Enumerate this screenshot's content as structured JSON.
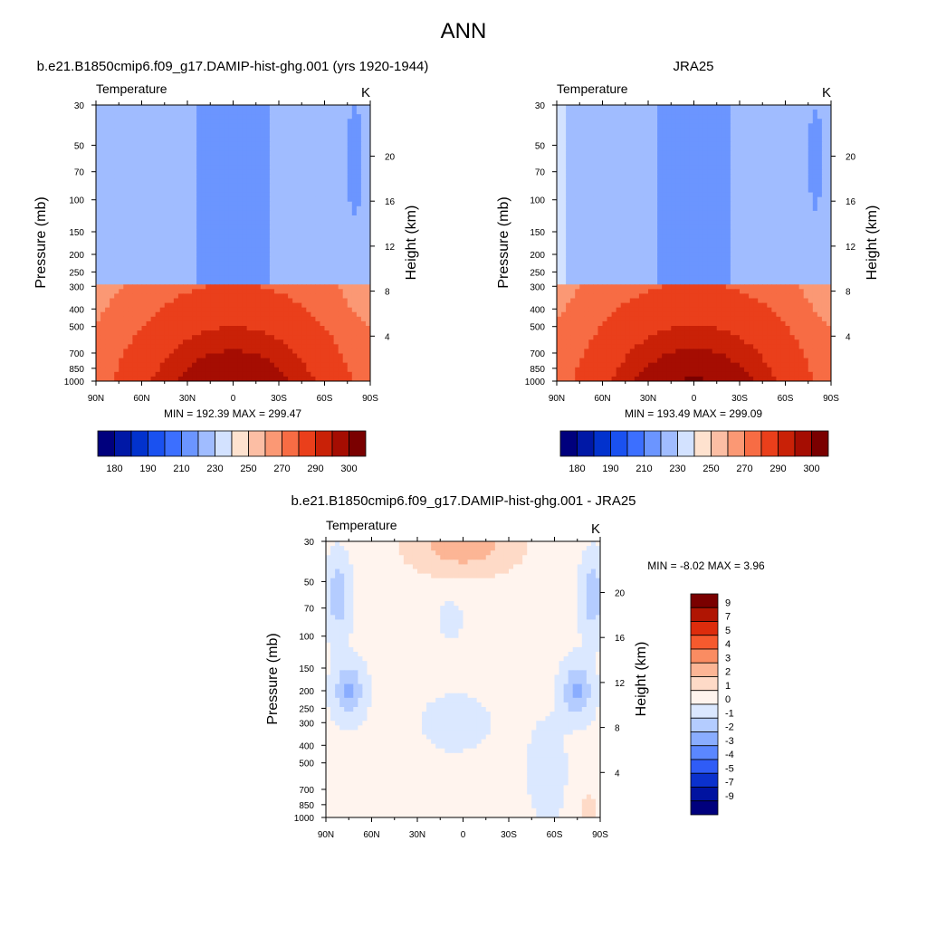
{
  "figure": {
    "title": "ANN"
  },
  "panels": [
    {
      "title": "b.e21.B1850cmip6.f09_g17.DAMIP-hist-ghg.001 (yrs 1920-1944)",
      "left_label": "Temperature",
      "right_label": "K",
      "ylabel": "Pressure (mb)",
      "y2label": "Height (km)",
      "stats": "MIN = 192.39  MAX = 299.47"
    },
    {
      "title": "JRA25",
      "left_label": "Temperature",
      "right_label": "K",
      "ylabel": "Pressure (mb)",
      "y2label": "Height (km)",
      "stats": "MIN = 193.49  MAX = 299.09"
    },
    {
      "title": "b.e21.B1850cmip6.f09_g17.DAMIP-hist-ghg.001 - JRA25",
      "left_label": "Temperature",
      "right_label": "K",
      "ylabel": "Pressure (mb)",
      "y2label": "Height (km)",
      "stats": "MIN =  -8.02  MAX =   3.96"
    }
  ],
  "chart_data": [
    {
      "type": "heatmap",
      "title": "b.e21.B1850cmip6.f09_g17.DAMIP-hist-ghg.001 (yrs 1920-1944)",
      "variable": "Temperature",
      "units": "K",
      "xlabel": "",
      "ylabel": "Pressure (mb)",
      "y2label": "Height (km)",
      "x_ticks": [
        "90N",
        "60N",
        "30N",
        "0",
        "30S",
        "60S",
        "90S"
      ],
      "y_ticks": [
        30,
        50,
        70,
        100,
        150,
        200,
        250,
        300,
        400,
        500,
        700,
        850,
        1000
      ],
      "y2_ticks": [
        4,
        8,
        12,
        16,
        20
      ],
      "ylim": [
        1000,
        30
      ],
      "y_scale": "log",
      "min": 192.39,
      "max": 299.47,
      "colorbar": {
        "orientation": "horizontal",
        "labels": [
          "180",
          "190",
          "210",
          "230",
          "250",
          "270",
          "290",
          "300"
        ],
        "colors": [
          "#00007d",
          "#0018a6",
          "#0232cd",
          "#1a51f0",
          "#3c6fff",
          "#6b95ff",
          "#a0bcff",
          "#d3e2ff",
          "#fee2cf",
          "#fcbea4",
          "#fb9874",
          "#f76c44",
          "#ea3f1b",
          "#c92107",
          "#a50d02",
          "#7a0000"
        ]
      },
      "field": "temperature"
    },
    {
      "type": "heatmap",
      "title": "JRA25",
      "variable": "Temperature",
      "units": "K",
      "xlabel": "",
      "ylabel": "Pressure (mb)",
      "y2label": "Height (km)",
      "x_ticks": [
        "90N",
        "60N",
        "30N",
        "0",
        "30S",
        "60S",
        "90S"
      ],
      "y_ticks": [
        30,
        50,
        70,
        100,
        150,
        200,
        250,
        300,
        400,
        500,
        700,
        850,
        1000
      ],
      "y2_ticks": [
        4,
        8,
        12,
        16,
        20
      ],
      "ylim": [
        1000,
        30
      ],
      "y_scale": "log",
      "min": 193.49,
      "max": 299.09,
      "colorbar": {
        "orientation": "horizontal",
        "labels": [
          "180",
          "190",
          "210",
          "230",
          "250",
          "270",
          "290",
          "300"
        ],
        "colors": [
          "#00007d",
          "#0018a6",
          "#0232cd",
          "#1a51f0",
          "#3c6fff",
          "#6b95ff",
          "#a0bcff",
          "#d3e2ff",
          "#fee2cf",
          "#fcbea4",
          "#fb9874",
          "#f76c44",
          "#ea3f1b",
          "#c92107",
          "#a50d02",
          "#7a0000"
        ]
      },
      "field": "temperature"
    },
    {
      "type": "heatmap",
      "title": "b.e21.B1850cmip6.f09_g17.DAMIP-hist-ghg.001 - JRA25",
      "variable": "Temperature",
      "units": "K",
      "xlabel": "",
      "ylabel": "Pressure (mb)",
      "y2label": "Height (km)",
      "x_ticks": [
        "90N",
        "60N",
        "30N",
        "0",
        "30S",
        "60S",
        "90S"
      ],
      "y_ticks": [
        30,
        50,
        70,
        100,
        150,
        200,
        250,
        300,
        400,
        500,
        700,
        850,
        1000
      ],
      "y2_ticks": [
        4,
        8,
        12,
        16,
        20
      ],
      "ylim": [
        1000,
        30
      ],
      "y_scale": "log",
      "min": -8.02,
      "max": 3.96,
      "colorbar": {
        "orientation": "vertical",
        "labels": [
          "9",
          "7",
          "5",
          "4",
          "3",
          "2",
          "1",
          "0",
          "-1",
          "-2",
          "-3",
          "-4",
          "-5",
          "-7",
          "-9"
        ],
        "colors": [
          "#7a0000",
          "#b01503",
          "#dd2c0c",
          "#f65a2e",
          "#fa8c62",
          "#fcb595",
          "#fedac7",
          "#fff4ee",
          "#dbe8ff",
          "#b4ccff",
          "#8aadff",
          "#5b87ff",
          "#2f5cf6",
          "#0b31cd",
          "#0013a0",
          "#00007d"
        ]
      },
      "field": "difference"
    }
  ]
}
